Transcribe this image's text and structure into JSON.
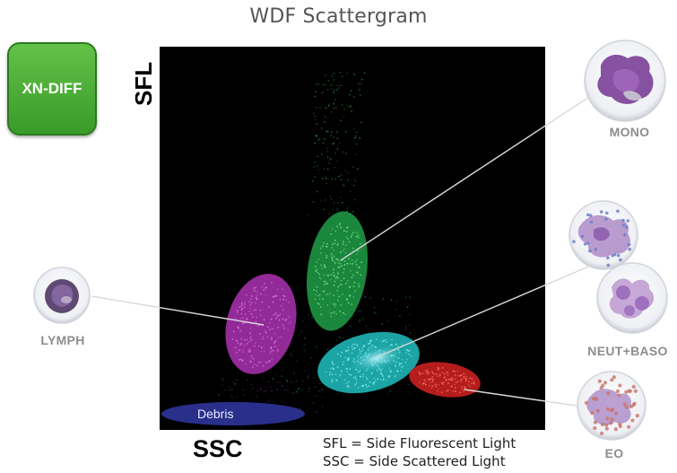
{
  "title": "WDF Scattergram",
  "badge": "XN-DIFF",
  "y_axis_label": "SFL",
  "x_axis_label": "SSC",
  "legend": {
    "line1": "SFL = Side Fluorescent Light",
    "line2": "SSC = Side Scattered Light"
  },
  "regions": {
    "debris": "Debris"
  },
  "cells": {
    "mono": "MONO",
    "lymph": "LYMPH",
    "neut_baso": "NEUT+BASO",
    "eo": "EO"
  },
  "colors": {
    "plot_bg": "#000000",
    "mono_cluster": "#1f9a45",
    "lymph_cluster": "#a22fa8",
    "neut_cluster": "#1fb5b5",
    "eo_cluster": "#c41f1f",
    "debris_cluster": "#2a2f8c",
    "badge": "#4cae36"
  }
}
